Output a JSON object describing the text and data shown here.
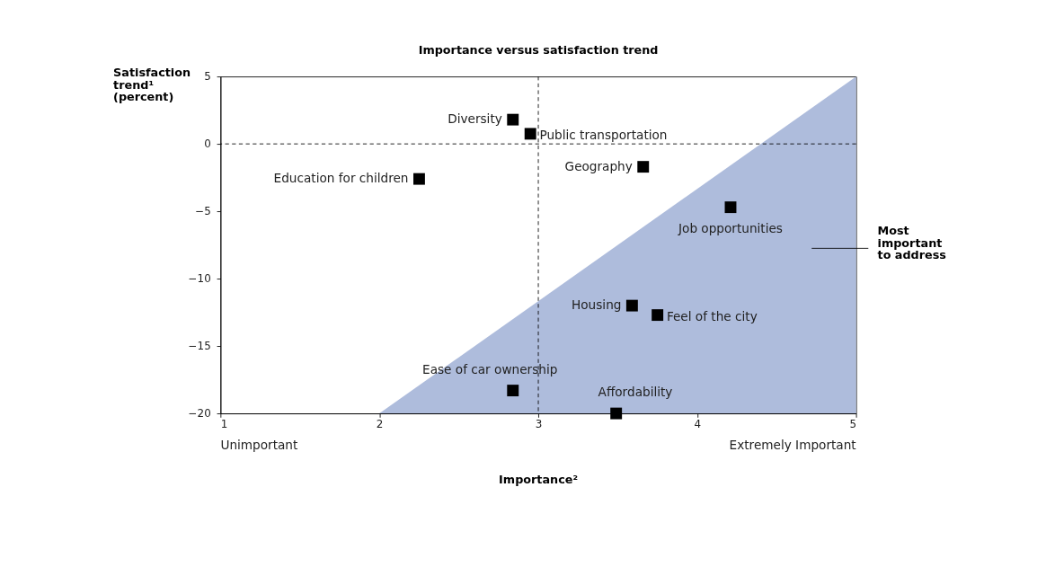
{
  "chart_data": {
    "type": "scatter",
    "title": "Importance versus satisfaction trend",
    "xlabel": "Importance²",
    "ylabel": "Satisfaction trend¹ (percent)",
    "xlim": [
      1,
      5
    ],
    "xticks": [
      1,
      2,
      3,
      4,
      5
    ],
    "ylim": [
      -20,
      5
    ],
    "yticks": [
      {
        "value": -20,
        "label": "−20"
      },
      {
        "value": -15,
        "label": "−15"
      },
      {
        "value": -10,
        "label": "−10"
      },
      {
        "value": -5,
        "label": "−5"
      },
      0,
      5
    ],
    "grid": false,
    "series": [
      {
        "type": "area",
        "color": "#aebcdc",
        "x": [
          2,
          5
        ],
        "values": [
          -20,
          5
        ]
      },
      {
        "color": "#000000",
        "marker": "square",
        "x": [
          2.84,
          2.95,
          3.66,
          2.25,
          4.21,
          3.59,
          3.75,
          2.84,
          3.49
        ],
        "values": [
          1.8,
          0.75,
          -1.7,
          -2.6,
          -4.7,
          -12,
          -12.7,
          -18.3,
          -20
        ]
      }
    ],
    "ref_lines": [
      {
        "axis": "x",
        "value": 3,
        "line_style": "dashed",
        "color": "#000000"
      },
      {
        "axis": "y",
        "value": 0,
        "line_style": "dashed",
        "color": "#000000"
      }
    ],
    "annotations": [
      {
        "text": "Diversity",
        "x": 2.84,
        "y": 1.8
      },
      {
        "text": "Public transportation",
        "x": 2.95,
        "y": 0.75
      },
      {
        "text": "Geography",
        "x": 3.66,
        "y": -1.7
      },
      {
        "text": "Education for children",
        "x": 2.25,
        "y": -2.6
      },
      {
        "text": "Job opportunities",
        "x": 4.21,
        "y": -4.7
      },
      {
        "text": "Housing",
        "x": 3.59,
        "y": -12
      },
      {
        "text": "Feel of the city",
        "x": 3.75,
        "y": -12.7
      },
      {
        "text": "Ease of car ownership",
        "x": 2.84,
        "y": -18.3
      },
      {
        "text": "Affordability",
        "x": 3.49,
        "y": -20
      },
      "Unimportant",
      "Extremely Important",
      "Most important to address"
    ]
  }
}
